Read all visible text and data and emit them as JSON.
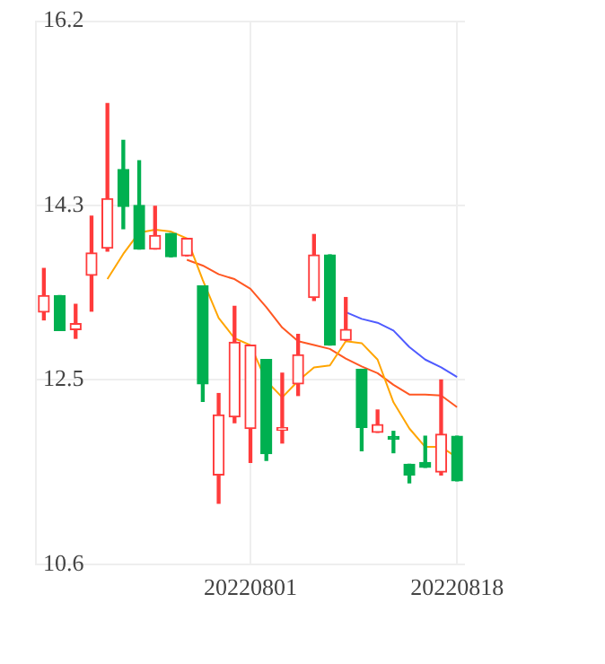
{
  "chart_data": {
    "type": "candlestick",
    "categories": [
      null,
      null,
      null,
      null,
      null,
      null,
      null,
      null,
      null,
      null,
      null,
      null,
      null,
      "20220801",
      null,
      null,
      null,
      null,
      null,
      null,
      null,
      null,
      null,
      null,
      null,
      null,
      "20220818"
    ],
    "ohlc": [
      [
        13.2,
        13.65,
        13.12,
        13.37
      ],
      [
        13.37,
        13.37,
        13.01,
        13.01
      ],
      [
        13.02,
        13.28,
        12.93,
        13.08
      ],
      [
        13.58,
        14.19,
        13.21,
        13.81
      ],
      [
        13.86,
        15.35,
        13.83,
        14.37
      ],
      [
        14.67,
        14.97,
        14.06,
        14.29
      ],
      [
        14.3,
        14.76,
        13.85,
        13.85
      ],
      [
        13.85,
        14.29,
        13.85,
        13.99
      ],
      [
        14.01,
        14.01,
        13.77,
        13.77
      ],
      [
        13.78,
        13.96,
        13.78,
        13.96
      ],
      [
        13.47,
        13.47,
        12.28,
        12.46
      ],
      [
        11.52,
        12.36,
        11.23,
        12.14
      ],
      [
        12.12,
        13.26,
        12.06,
        12.89
      ],
      [
        12.0,
        12.86,
        11.65,
        12.86
      ],
      [
        12.71,
        12.71,
        11.67,
        11.74
      ],
      [
        11.98,
        12.57,
        11.85,
        12.0
      ],
      [
        12.46,
        12.97,
        12.34,
        12.76
      ],
      [
        13.35,
        14.0,
        13.32,
        13.79
      ],
      [
        13.79,
        13.79,
        12.86,
        12.86
      ],
      [
        12.91,
        13.35,
        12.91,
        13.02
      ],
      [
        12.61,
        12.61,
        11.77,
        12.01
      ],
      [
        11.96,
        12.19,
        11.96,
        12.04
      ],
      [
        11.9,
        11.97,
        11.75,
        11.89
      ],
      [
        11.63,
        11.63,
        11.44,
        11.52
      ],
      [
        11.65,
        11.92,
        11.6,
        11.6
      ],
      [
        11.55,
        12.5,
        11.52,
        11.94
      ],
      [
        11.92,
        11.92,
        11.46,
        11.46
      ]
    ],
    "series": [
      {
        "type": "line",
        "color": "#ffa500",
        "values": [
          null,
          null,
          null,
          null,
          13.54,
          13.8,
          14.02,
          14.05,
          14.03,
          13.96,
          13.53,
          13.14,
          12.93,
          12.86,
          12.49,
          12.32,
          12.49,
          12.63,
          12.65,
          12.9,
          12.88,
          12.71,
          12.27,
          12.0,
          11.81,
          11.81,
          11.7
        ]
      },
      {
        "type": "line",
        "color": "#ff5722",
        "values": [
          null,
          null,
          null,
          null,
          null,
          null,
          null,
          null,
          null,
          13.74,
          13.68,
          13.59,
          13.54,
          13.44,
          13.25,
          13.04,
          12.9,
          12.86,
          12.82,
          12.72,
          12.64,
          12.57,
          12.45,
          12.35,
          12.35,
          12.34,
          12.22
        ]
      },
      {
        "type": "line",
        "color": "#4f5bff",
        "values": [
          null,
          null,
          null,
          null,
          null,
          null,
          null,
          null,
          null,
          null,
          null,
          null,
          null,
          null,
          null,
          null,
          null,
          null,
          null,
          13.2,
          13.13,
          13.09,
          13.01,
          12.84,
          12.71,
          12.63,
          12.53
        ]
      }
    ],
    "ylim": [
      10.6,
      16.2
    ],
    "yticks": [
      10.6,
      12.5,
      14.3,
      16.2
    ],
    "grid": true,
    "marker": "none"
  }
}
